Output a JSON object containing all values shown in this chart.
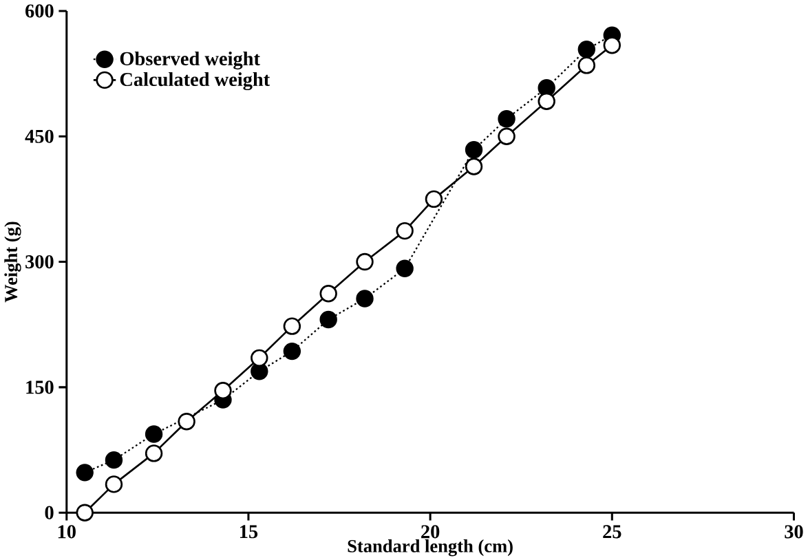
{
  "chart_data": {
    "type": "line",
    "xlabel": "Standard length (cm)",
    "ylabel": "Weight (g)",
    "xlim": [
      10,
      30
    ],
    "ylim": [
      0,
      600
    ],
    "xticks": [
      10,
      15,
      20,
      25,
      30
    ],
    "yticks": [
      0,
      150,
      300,
      450,
      600
    ],
    "grid": false,
    "legend": "top left",
    "series": [
      {
        "name": "Observed weight",
        "color": "#000000",
        "marker": "circle",
        "line_style": "dotted",
        "x": [
          10.5,
          11.3,
          12.4,
          14.3,
          15.3,
          16.2,
          17.2,
          18.2,
          19.3,
          21.2,
          22.1,
          23.2,
          24.3,
          25.0
        ],
        "values": [
          48,
          63,
          94,
          135,
          169,
          193,
          231,
          256,
          292,
          434,
          471,
          508,
          554,
          571
        ]
      },
      {
        "name": "Calculated weight",
        "color": "#000000",
        "marker": "circle",
        "line_style": "solid",
        "x": [
          10.5,
          11.3,
          12.4,
          13.3,
          14.3,
          15.3,
          16.2,
          17.2,
          18.2,
          19.3,
          20.1,
          21.2,
          22.1,
          23.2,
          24.3,
          25.0
        ],
        "values": [
          0,
          34,
          71,
          109,
          146,
          185,
          223,
          262,
          300,
          337,
          375,
          414,
          450,
          492,
          535,
          559
        ]
      }
    ]
  }
}
